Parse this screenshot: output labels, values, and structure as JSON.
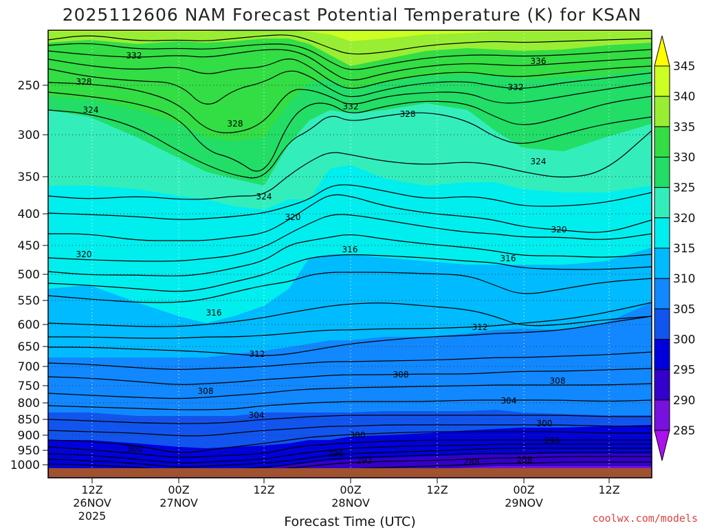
{
  "chart_data": {
    "type": "contour",
    "title": "2025112606 NAM Forecast Potential Temperature (K) for KSAN",
    "xlabel": "Forecast Time (UTC)",
    "credit": "coolwx.com/models",
    "y_ticks": [
      "250",
      "300",
      "350",
      "400",
      "450",
      "500",
      "550",
      "600",
      "650",
      "700",
      "750",
      "800",
      "850",
      "900",
      "950",
      "1000"
    ],
    "y_axis_scale": "pressure (hPa), top 200 to bottom 1000, reversed",
    "x_ticks": [
      {
        "time": "12Z",
        "date": "26NOV",
        "year": "2025"
      },
      {
        "time": "00Z",
        "date": "27NOV",
        "year": ""
      },
      {
        "time": "12Z",
        "date": "",
        "year": ""
      },
      {
        "time": "00Z",
        "date": "28NOV",
        "year": ""
      },
      {
        "time": "12Z",
        "date": "",
        "year": ""
      },
      {
        "time": "00Z",
        "date": "29NOV",
        "year": ""
      },
      {
        "time": "12Z",
        "date": "",
        "year": ""
      }
    ],
    "x_range_hours": [
      0,
      84
    ],
    "colorbar": {
      "labels": [
        "345",
        "340",
        "335",
        "330",
        "325",
        "320",
        "315",
        "310",
        "305",
        "300",
        "295",
        "290",
        "285"
      ],
      "colors": [
        "#ffff00",
        "#ccff22",
        "#99ee33",
        "#33dd44",
        "#22dd66",
        "#33eebb",
        "#00eeee",
        "#00bbff",
        "#1188ff",
        "#1155ee",
        "#0000dd",
        "#3300cc",
        "#7711dd",
        "#aa11ee"
      ]
    },
    "contour_labels": [
      "332",
      "328",
      "324",
      "328",
      "336",
      "332",
      "332",
      "328",
      "324",
      "324",
      "320",
      "320",
      "320",
      "316",
      "316",
      "316",
      "312",
      "312",
      "308",
      "308",
      "308",
      "304",
      "304",
      "300",
      "300",
      "300",
      "296",
      "296",
      "292",
      "288",
      "288"
    ],
    "contour_interval_K": 2,
    "grid": true,
    "legend": "colorbar-right"
  }
}
